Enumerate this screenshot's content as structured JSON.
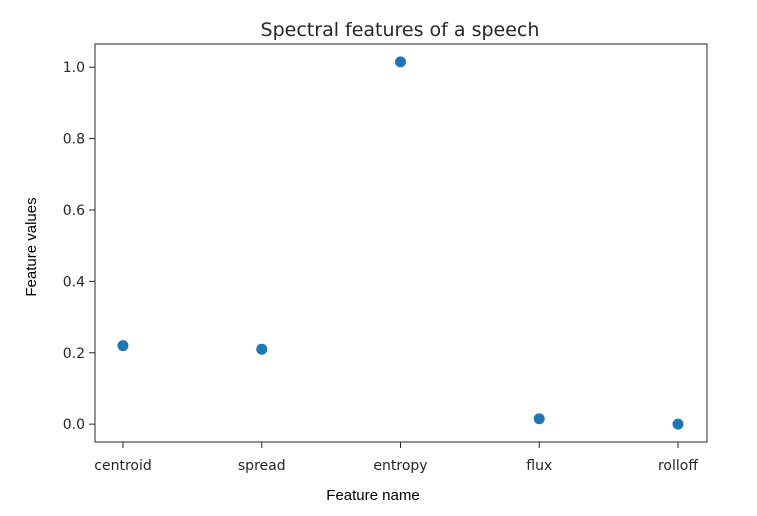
{
  "chart_data": {
    "type": "scatter",
    "title": "Spectral features of a speech",
    "xlabel": "Feature name",
    "ylabel": "Feature values",
    "categories": [
      "centroid",
      "spread",
      "entropy",
      "flux",
      "rolloff"
    ],
    "values": [
      0.22,
      0.21,
      1.015,
      0.015,
      0.0
    ],
    "ylim": [
      -0.05,
      1.065
    ],
    "yticks": [
      0.0,
      0.2,
      0.4,
      0.6,
      0.8,
      1.0
    ],
    "ytick_labels": [
      "0.0",
      "0.2",
      "0.4",
      "0.6",
      "0.8",
      "1.0"
    ],
    "grid": false,
    "legend": "none",
    "marker_color": "#1f77b4",
    "axes_color": "#262626"
  }
}
